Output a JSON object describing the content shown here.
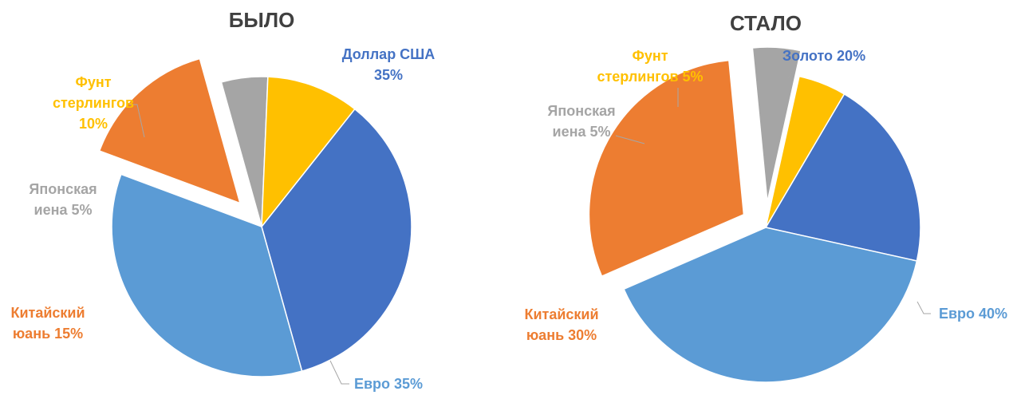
{
  "chart_data": [
    {
      "type": "pie",
      "title": "БЫЛО",
      "categories": [
        "Доллар США",
        "Евро",
        "Китайский юань",
        "Японская иена",
        "Фунт стерлингов"
      ],
      "values": [
        35,
        35,
        15,
        5,
        10
      ],
      "units": "%",
      "labels": [
        [
          "Доллар США",
          "35%"
        ],
        [
          "Евро 35%"
        ],
        [
          "Китайский",
          "юань 15%"
        ],
        [
          "Японская",
          "иена 5%"
        ],
        [
          "Фунт",
          "стерлингов",
          "10%"
        ]
      ],
      "colors": [
        "#4472C4",
        "#5B9BD5",
        "#ED7D31",
        "#A5A5A5",
        "#FFC000"
      ],
      "exploded": [
        "Китайский юань"
      ],
      "legend": "none"
    },
    {
      "type": "pie",
      "title": "СТАЛО",
      "categories": [
        "Золото",
        "Евро",
        "Китайский юань",
        "Японская иена",
        "Фунт стерлингов"
      ],
      "values": [
        20,
        40,
        30,
        5,
        5
      ],
      "units": "%",
      "labels": [
        [
          "Золото 20%"
        ],
        [
          "Евро 40%"
        ],
        [
          "Китайский",
          "юань 30%"
        ],
        [
          "Японская",
          "иена 5%"
        ],
        [
          "Фунт",
          "стерлингов 5%"
        ]
      ],
      "colors": [
        "#4472C4",
        "#5B9BD5",
        "#ED7D31",
        "#A5A5A5",
        "#FFC000"
      ],
      "exploded": [
        "Китайский юань",
        "Японская иена"
      ],
      "legend": "none"
    }
  ]
}
